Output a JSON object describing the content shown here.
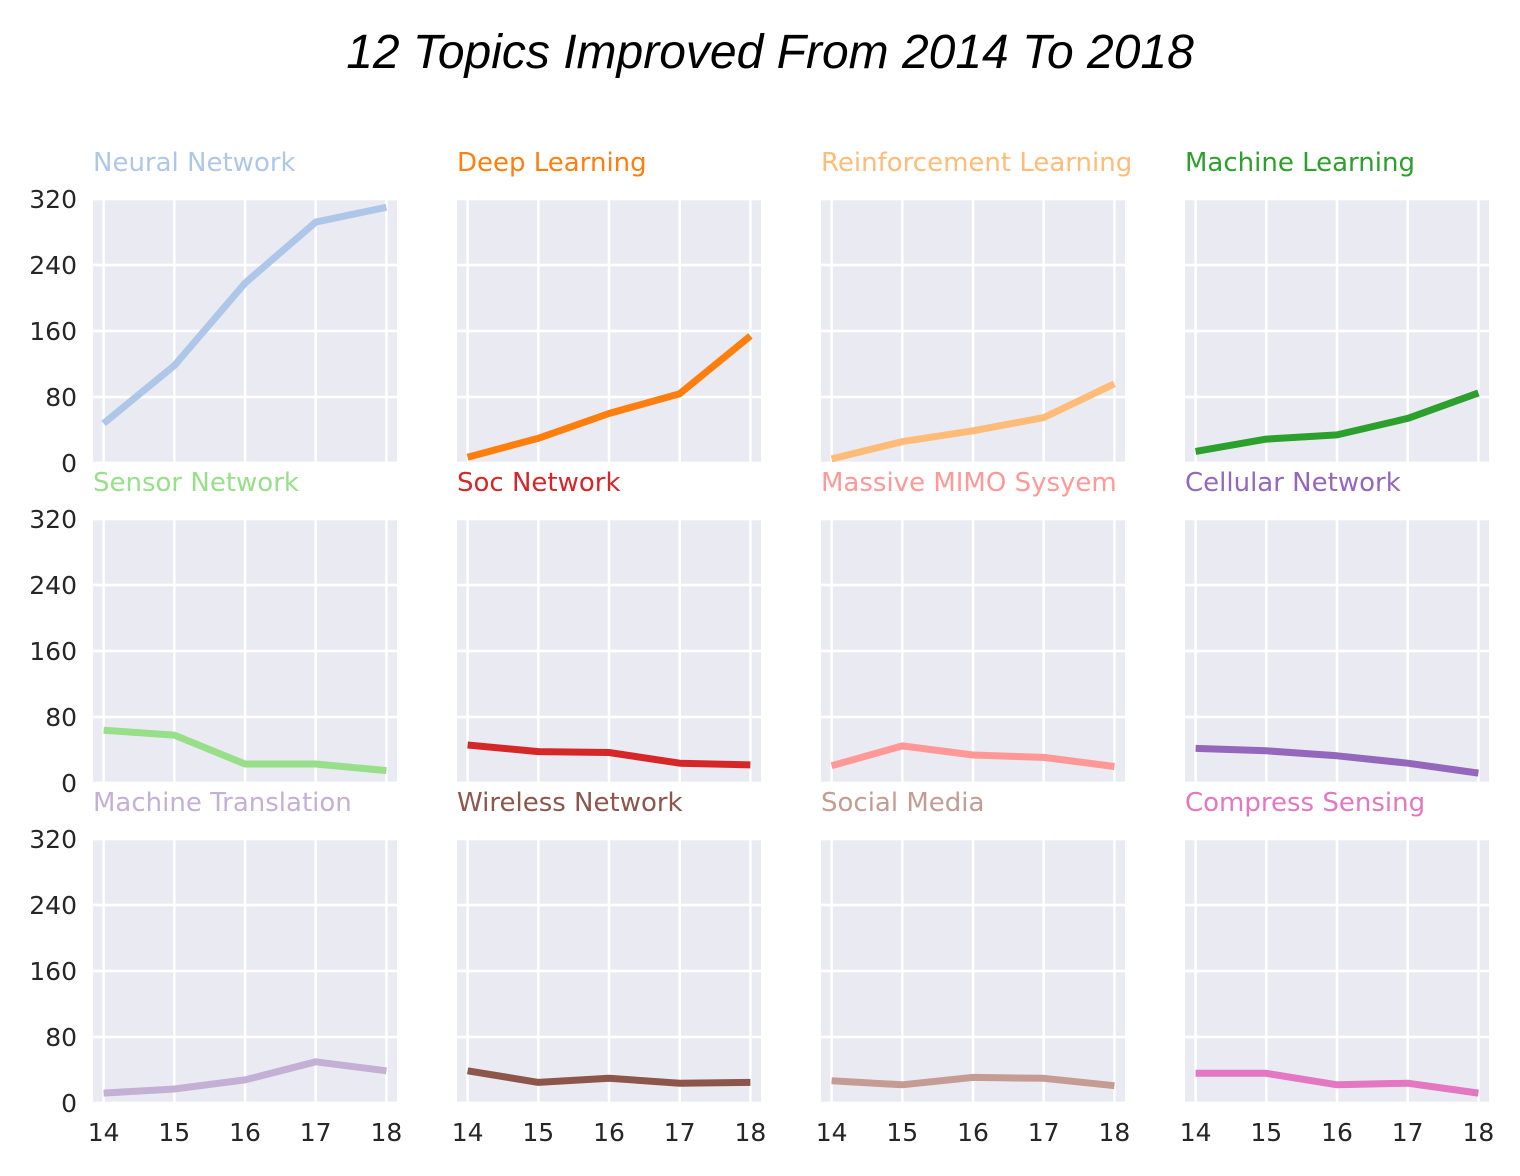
{
  "chart_data": {
    "type": "line",
    "title": "12 Topics Improved From 2014 To 2018",
    "x": [
      14,
      15,
      16,
      17,
      18
    ],
    "x_ticks": [
      "14",
      "15",
      "16",
      "17",
      "18"
    ],
    "y_ticks": [
      "0",
      "80",
      "160",
      "240",
      "320"
    ],
    "ylim": [
      0,
      320
    ],
    "xlim": [
      13.85,
      18.15
    ],
    "grid": true,
    "layout": "3x4 small multiples, shared axes",
    "series": [
      {
        "name": "Neural Network",
        "color": "#aec7e8",
        "values": [
          48,
          118,
          218,
          292,
          310
        ]
      },
      {
        "name": "Deep Learning",
        "color": "#ff7f0e",
        "values": [
          7,
          30,
          60,
          84,
          154
        ]
      },
      {
        "name": "Reinforcement Learning",
        "color": "#ffbb78",
        "values": [
          5,
          26,
          39,
          55,
          96
        ]
      },
      {
        "name": "Machine Learning",
        "color": "#2ca02c",
        "values": [
          14,
          29,
          34,
          54,
          85
        ]
      },
      {
        "name": "Sensor Network",
        "color": "#98df8a",
        "values": [
          64,
          58,
          23,
          23,
          15
        ]
      },
      {
        "name": "Soc Network",
        "color": "#d62728",
        "values": [
          46,
          38,
          37,
          24,
          22
        ]
      },
      {
        "name": "Massive MIMO Sysyem",
        "color": "#ff9896",
        "values": [
          21,
          45,
          34,
          31,
          20
        ]
      },
      {
        "name": "Cellular Network",
        "color": "#9467bd",
        "values": [
          42,
          39,
          33,
          24,
          12
        ]
      },
      {
        "name": "Machine Translation",
        "color": "#c5b0d5",
        "values": [
          12,
          17,
          28,
          50,
          39
        ]
      },
      {
        "name": "Wireless Network",
        "color": "#8c564b",
        "values": [
          39,
          25,
          30,
          24,
          25
        ]
      },
      {
        "name": "Social Media",
        "color": "#c49c94",
        "values": [
          27,
          22,
          31,
          30,
          21
        ]
      },
      {
        "name": "Compress Sensing",
        "color": "#e377c2",
        "values": [
          36,
          36,
          22,
          24,
          12
        ]
      }
    ]
  }
}
